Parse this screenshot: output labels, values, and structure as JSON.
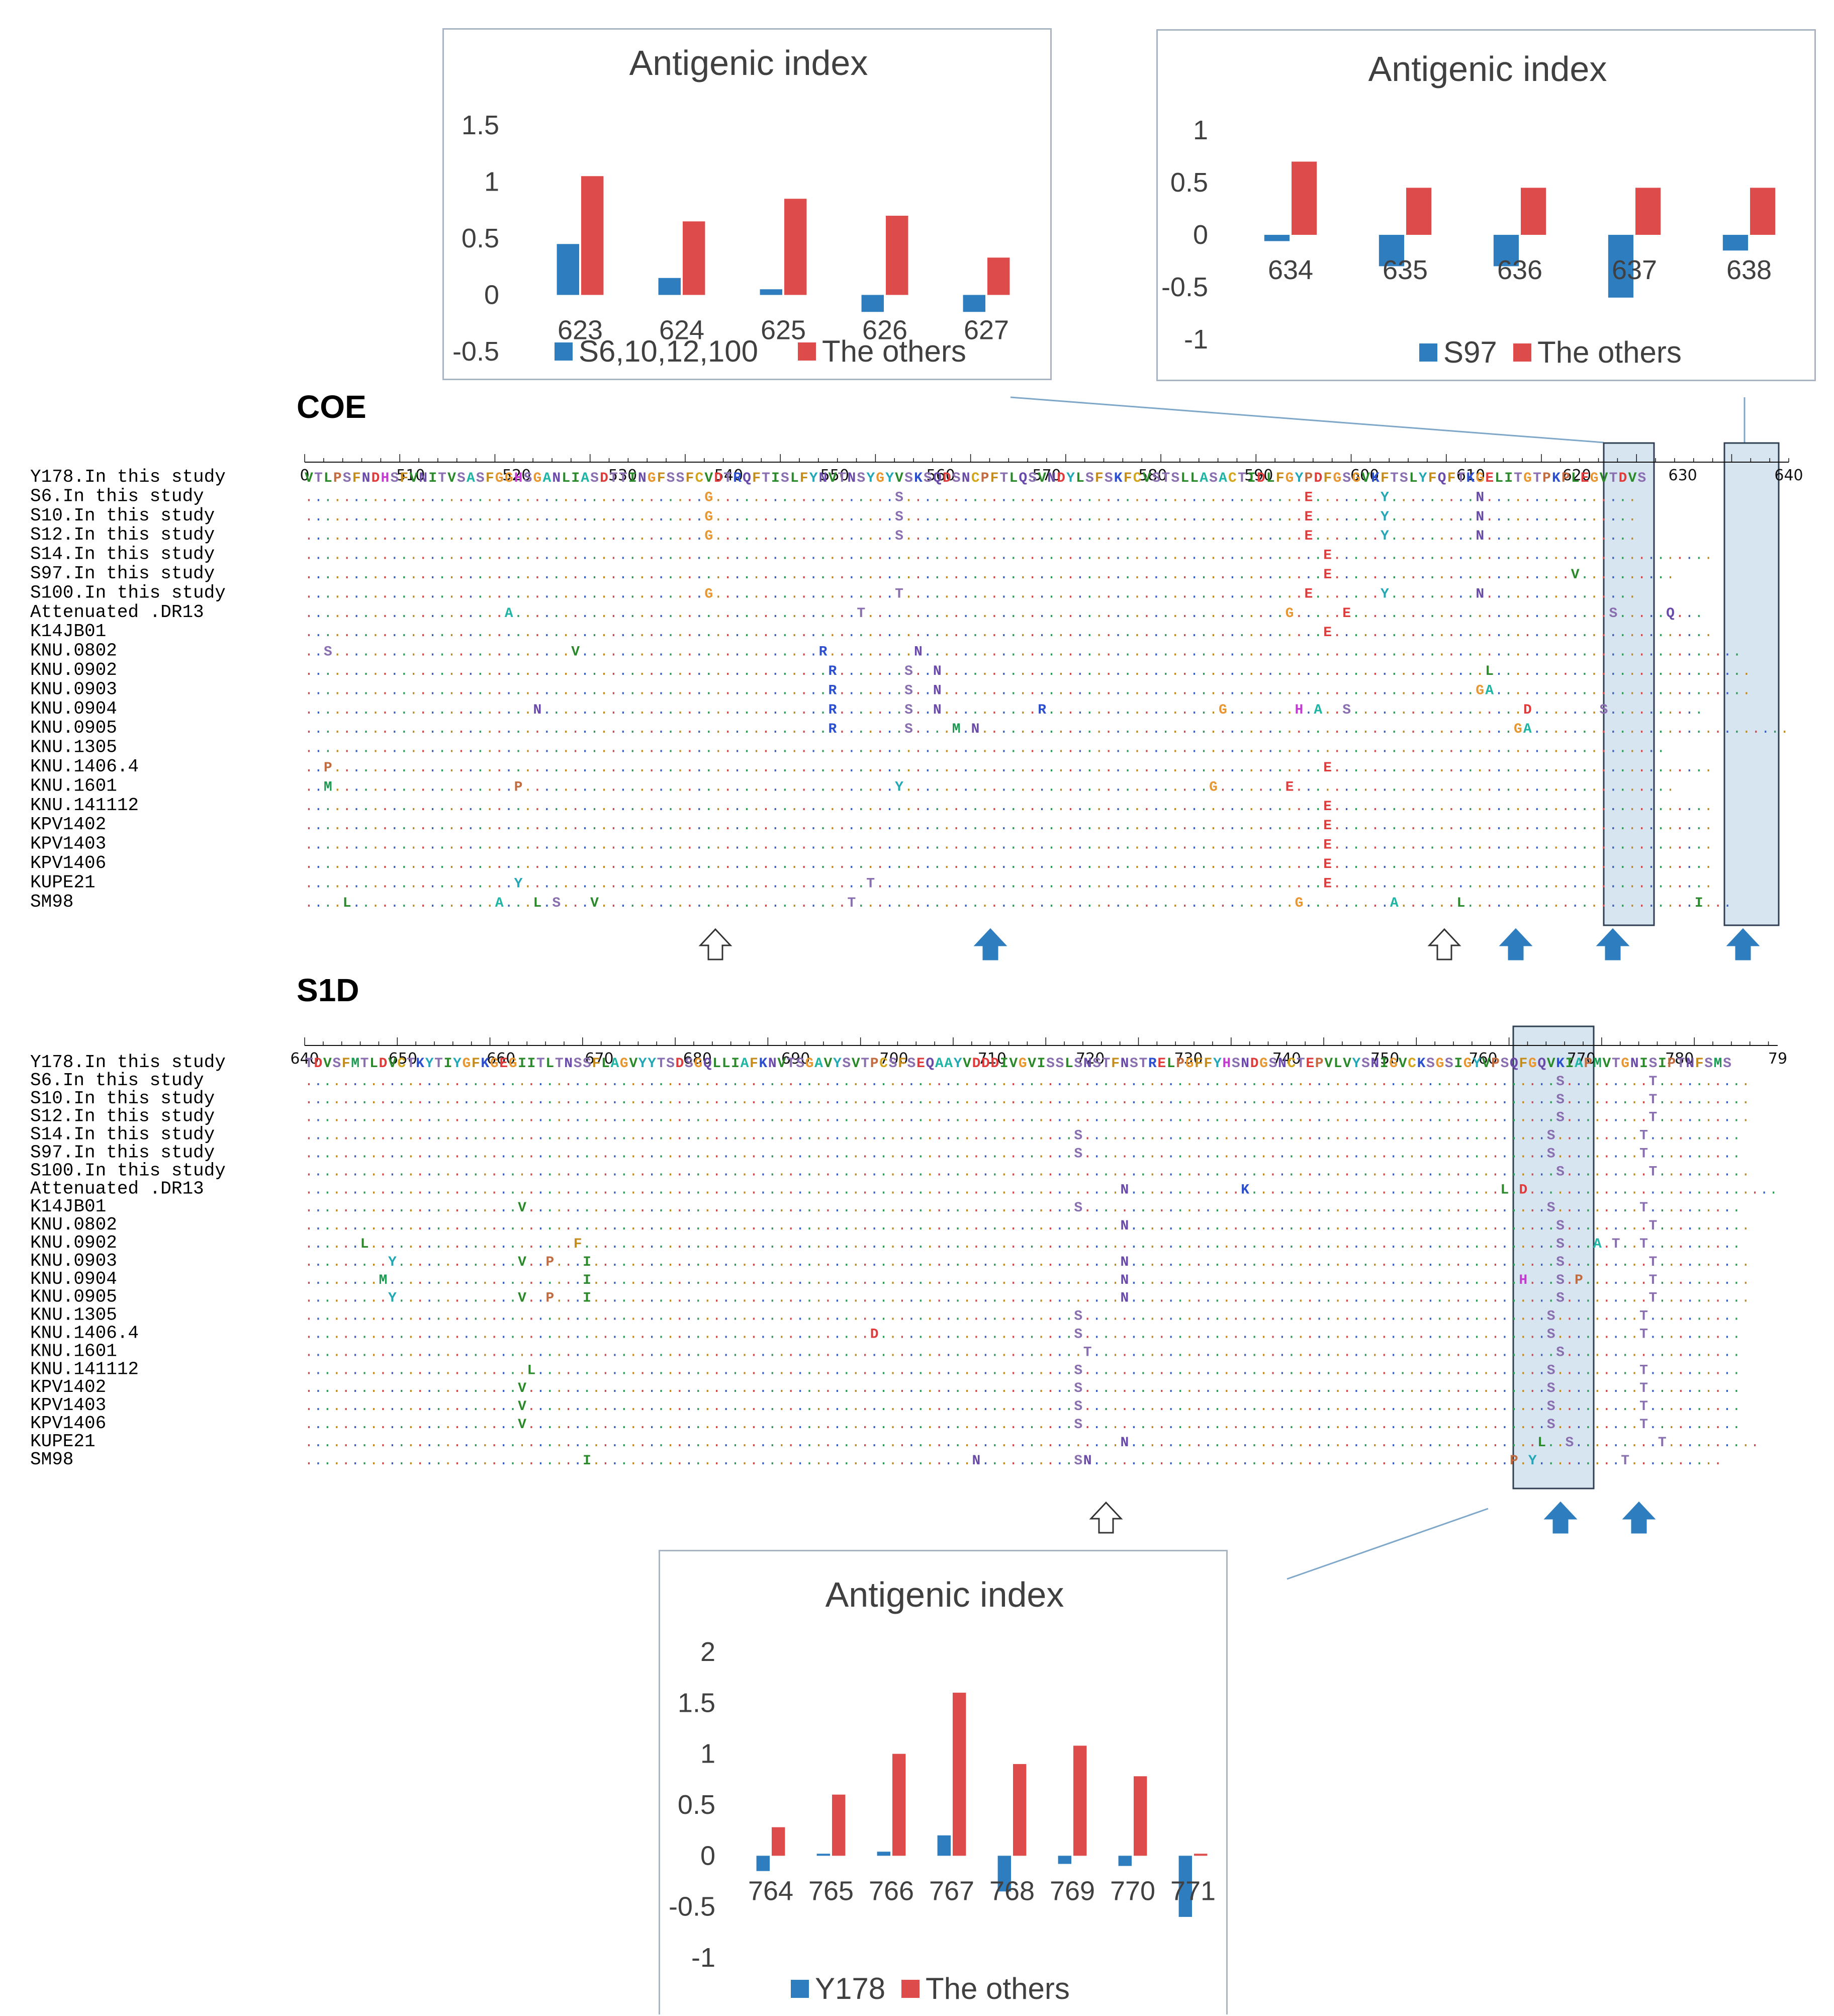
{
  "colors": {
    "blue": "#2e7dbf",
    "red": "#dd4b4b",
    "highlight": "#d7e5f0",
    "highlightBorder": "#2f3f52",
    "dot": "#6b7280"
  },
  "chart_data": [
    {
      "id": "coe-left",
      "type": "bar",
      "title": "Antigenic index",
      "categories": [
        "623",
        "624",
        "625",
        "626",
        "627"
      ],
      "ylim": [
        -0.5,
        1.5
      ],
      "ticks": [
        "1.5",
        "1",
        "0.5",
        "0",
        "-0.5"
      ],
      "tick_values": [
        1.5,
        1,
        0.5,
        0,
        -0.5
      ],
      "series": [
        {
          "name": "S6,10,12,100",
          "color": "blue",
          "values": [
            0.45,
            0.15,
            0.05,
            -0.15,
            -0.15
          ]
        },
        {
          "name": "The others",
          "color": "red",
          "values": [
            1.05,
            0.65,
            0.85,
            0.7,
            0.33
          ]
        }
      ]
    },
    {
      "id": "coe-right",
      "type": "bar",
      "title": "Antigenic index",
      "categories": [
        "634",
        "635",
        "636",
        "637",
        "638"
      ],
      "ylim": [
        -1,
        1
      ],
      "ticks": [
        "1",
        "0.5",
        "0",
        "-0.5",
        "-1"
      ],
      "tick_values": [
        1,
        0.5,
        0,
        -0.5,
        -1
      ],
      "series": [
        {
          "name": "S97",
          "color": "blue",
          "values": [
            -0.06,
            -0.3,
            -0.3,
            -0.6,
            -0.15
          ]
        },
        {
          "name": "The others",
          "color": "red",
          "values": [
            0.7,
            0.45,
            0.45,
            0.45,
            0.45
          ]
        }
      ]
    },
    {
      "id": "s1d-bottom",
      "type": "bar",
      "title": "Antigenic index",
      "categories": [
        "764",
        "765",
        "766",
        "767",
        "768",
        "769",
        "770",
        "771"
      ],
      "ylim": [
        -1,
        2
      ],
      "ticks": [
        "2",
        "1.5",
        "1",
        "0.5",
        "0",
        "-0.5",
        "-1"
      ],
      "tick_values": [
        2,
        1.5,
        1,
        0.5,
        0,
        -0.5,
        -1
      ],
      "series": [
        {
          "name": "Y178",
          "color": "blue",
          "values": [
            -0.15,
            0.02,
            0.04,
            0.2,
            -0.35,
            -0.08,
            -0.1,
            -0.6
          ]
        },
        {
          "name": "The others",
          "color": "red",
          "values": [
            0.28,
            0.6,
            1.0,
            1.6,
            0.9,
            1.08,
            0.78,
            0.02
          ]
        }
      ]
    }
  ],
  "sections": [
    {
      "label": "COE",
      "ruler_labels": [
        "0",
        "510",
        "520",
        "530",
        "540",
        "550",
        "560",
        "570",
        "580",
        "590",
        "600",
        "610",
        "620",
        "630",
        "640"
      ],
      "rows": [
        {
          "name": "Y178.In this study",
          "seq": "VTLPSFNDHSFVNITVSASFGGHSGANLIASDTTINGFSSFCVDTRQFTISLFYNVTNSYGYVSKSQDSNCPFTLQSVNDYLSFSKFCVSTSLLASACTIDLFGYPDFGSGVKFTSLYFQFTKGELITGTPKPLEGVTDVS"
        },
        {
          "name": "S6.In this study",
          "seq": "..........................................G...................S..........................................E.......Y.........N................"
        },
        {
          "name": "S10.In this study",
          "seq": "..........................................G...................S..........................................E.......Y.........N................"
        },
        {
          "name": "S12.In this study",
          "seq": "..........................................G...................S..........................................E.......Y.........N................"
        },
        {
          "name": "S14.In this study",
          "seq": "...........................................................................................................E........................................"
        },
        {
          "name": "S97.In this study",
          "seq": "...........................................................................................................E.........................V.........."
        },
        {
          "name": "S100.In this study",
          "seq": "..........................................G...................T..........................................E.......Y.........N................"
        },
        {
          "name": "Attenuated .DR13",
          "seq": ".....................A....................................T............................................G.....E...........................S.....Q..."
        },
        {
          "name": "K14JB01",
          "seq": "...........................................................................................................E........................................"
        },
        {
          "name": "KNU.0802",
          "seq": "..S.........................V.........................R.........N......................................................................................"
        },
        {
          "name": "KNU.0902",
          "seq": ".......................................................R.......S..N.........................................................L..........................."
        },
        {
          "name": "KNU.0903",
          "seq": ".......................................................R.......S..N........................................................GA..........................."
        },
        {
          "name": "KNU.0904",
          "seq": "........................N..............................R.......S..N..........R..................G.......H.A..S..................D.......S.........."
        },
        {
          "name": "KNU.0905",
          "seq": ".......................................................R.......S....M.N........................................................GA..........................."
        },
        {
          "name": "KNU.1305",
          "seq": "..............................................................................................................................................."
        },
        {
          "name": "KNU.1406.4",
          "seq": "..P........................................................................................................E........................................"
        },
        {
          "name": "KNU.1601",
          "seq": "..M...................P.......................................Y................................G.......E........................................"
        },
        {
          "name": "KNU.141112",
          "seq": "...........................................................................................................E........................................"
        },
        {
          "name": "KPV1402",
          "seq": "...........................................................................................................E........................................"
        },
        {
          "name": "KPV1403",
          "seq": "...........................................................................................................E........................................"
        },
        {
          "name": "KPV1406",
          "seq": "...........................................................................................................E........................................"
        },
        {
          "name": "KUPE21",
          "seq": "......................Y....................................T...............................................E........................................"
        },
        {
          "name": "SM98",
          "seq": "....L...............A...L.S...V..........................T..............................................G.........A......L........................I..."
        }
      ]
    },
    {
      "label": "S1D",
      "ruler_labels": [
        "640",
        "650",
        "660",
        "670",
        "680",
        "690",
        "700",
        "710",
        "720",
        "730",
        "740",
        "750",
        "760",
        "770",
        "780",
        "79"
      ],
      "rows": [
        {
          "name": "Y178.In this study",
          "seq": "TDVSFMTLDVCTKYTIYGFKGEGIITLTNSSFLAGVYYTSDSGQLLIAFKNVTSGAVYSVTPCSFSEQAAYVDDDIVGVISSLSNSTFNSTRELPGFFYHSNDGSNCTEPVLVYSNIGVCKSGSIGYVPSQFGQVKIAPMVTGNISIPTNFSMS"
        },
        {
          "name": "S6.In this study",
          "seq": ".......................................................................................................................................S.........T.........."
        },
        {
          "name": "S10.In this study",
          "seq": ".......................................................................................................................................S.........T.........."
        },
        {
          "name": "S12.In this study",
          "seq": ".......................................................................................................................................S.........T.........."
        },
        {
          "name": "S14.In this study",
          "seq": "...................................................................................S..................................................S.........T.........."
        },
        {
          "name": "S97.In this study",
          "seq": "...................................................................................S..................................................S.........T.........."
        },
        {
          "name": "S100.In this study",
          "seq": ".......................................................................................................................................S.........T.........."
        },
        {
          "name": "Attenuated .DR13",
          "seq": "........................................................................................N............K...........................L.D..........................."
        },
        {
          "name": "K14JB01",
          "seq": ".......................V...........................................................S..................................................S.........T.........."
        },
        {
          "name": "KNU.0802",
          "seq": "........................................................................................N..............................................S.........T.........."
        },
        {
          "name": "KNU.0902",
          "seq": "......L......................F.........................................................................................................S...A.T..T.........."
        },
        {
          "name": "KNU.0903",
          "seq": ".........Y.............V..P...I.........................................................N..............................................S.........T.........."
        },
        {
          "name": "KNU.0904",
          "seq": "........M.....................I.........................................................N..........................................H...S.P.......T.........."
        },
        {
          "name": "KNU.0905",
          "seq": ".........Y.............V..P...I.........................................................N..............................................S.........T.........."
        },
        {
          "name": "KNU.1305",
          "seq": "...................................................................................S..................................................S.........T.........."
        },
        {
          "name": "KNU.1406.4",
          "seq": ".............................................................D.....................S..................................................S.........T.........."
        },
        {
          "name": "KNU.1601",
          "seq": "....................................................................................T..................................................S..................."
        },
        {
          "name": "KNU.141112",
          "seq": "........................L..........................................................S..................................................S.........T.........."
        },
        {
          "name": "KPV1402",
          "seq": ".......................V...........................................................S..................................................S.........T.........."
        },
        {
          "name": "KPV1403",
          "seq": ".......................V...........................................................S..................................................S.........T.........."
        },
        {
          "name": "KPV1406",
          "seq": ".......................V...........................................................S..................................................S.........T.........."
        },
        {
          "name": "KUPE21",
          "seq": "........................................................................................N............................................L..S.........T.........."
        },
        {
          "name": "SM98",
          "seq": "..............................I.........................................N..........SN.............................................P.Y.........T.........."
        }
      ]
    }
  ]
}
